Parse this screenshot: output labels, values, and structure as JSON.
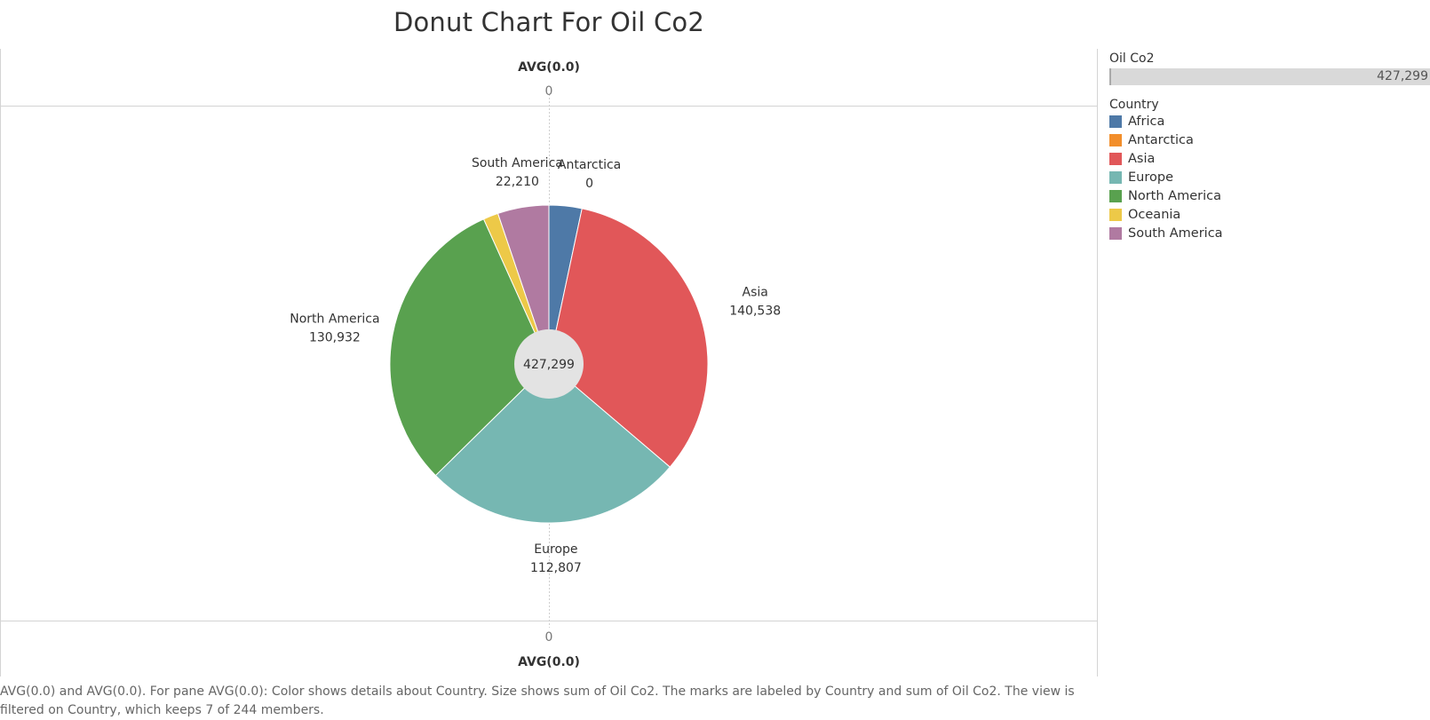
{
  "title": "Donut Chart For Oil Co2",
  "axis": {
    "top_label": "AVG(0.0)",
    "top_tick": "0",
    "bottom_tick": "0",
    "bottom_label": "AVG(0.0)"
  },
  "legend": {
    "size_title": "Oil Co2",
    "size_value": "427,299",
    "color_title": "Country",
    "items": [
      {
        "label": "Africa",
        "color": "#4e79a7"
      },
      {
        "label": "Antarctica",
        "color": "#f28e2b"
      },
      {
        "label": "Asia",
        "color": "#e15759"
      },
      {
        "label": "Europe",
        "color": "#76b7b2"
      },
      {
        "label": "North America",
        "color": "#59a14f"
      },
      {
        "label": "Oceania",
        "color": "#edc948"
      },
      {
        "label": "South America",
        "color": "#b07aa1"
      }
    ]
  },
  "caption": "AVG(0.0) and AVG(0.0).  For pane AVG(0.0):  Color shows details about Country.  Size shows sum of Oil Co2.  The marks are labeled by Country and sum of Oil Co2. The view is filtered on Country, which keeps 7 of 244 members.",
  "chart_data": {
    "type": "pie",
    "title": "Donut Chart For Oil Co2",
    "total": 427299,
    "total_label": "427,299",
    "slices": [
      {
        "label": "Africa",
        "value": 14262,
        "display": "",
        "color": "#4e79a7"
      },
      {
        "label": "Antarctica",
        "value": 0,
        "display": "0",
        "color": "#f28e2b"
      },
      {
        "label": "Asia",
        "value": 140538,
        "display": "140,538",
        "color": "#e15759"
      },
      {
        "label": "Europe",
        "value": 112807,
        "display": "112,807",
        "color": "#76b7b2"
      },
      {
        "label": "North America",
        "value": 130932,
        "display": "130,932",
        "color": "#59a14f"
      },
      {
        "label": "Oceania",
        "value": 6550,
        "display": "",
        "color": "#edc948"
      },
      {
        "label": "South America",
        "value": 22210,
        "display": "22,210",
        "color": "#b07aa1"
      }
    ],
    "legend_position": "right"
  }
}
